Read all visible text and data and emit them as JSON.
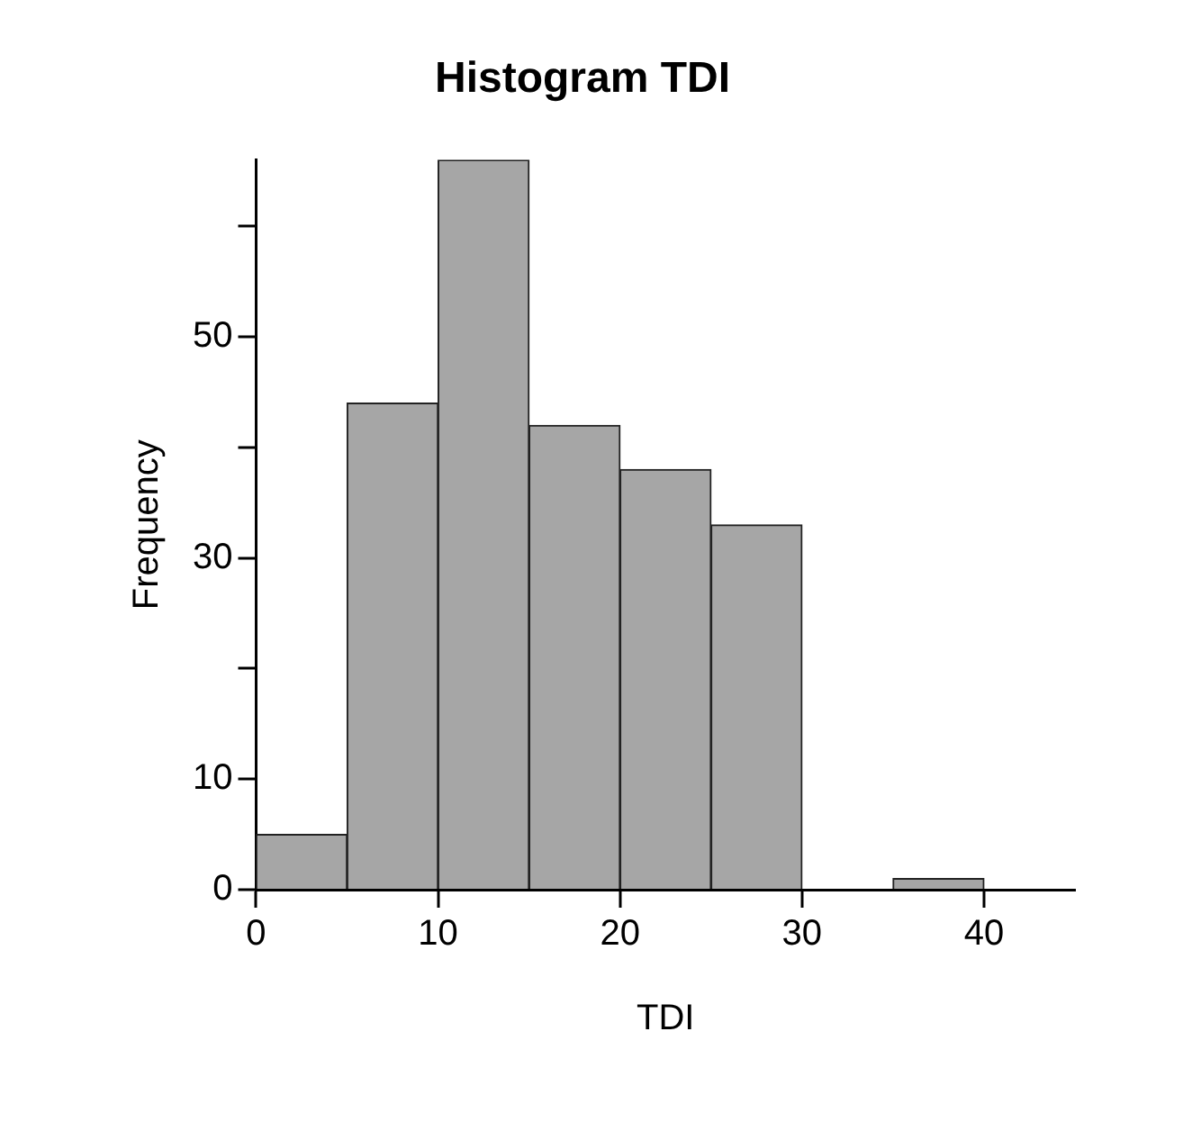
{
  "chart_data": {
    "type": "histogram",
    "title": "Histogram TDI",
    "xlabel": "TDI",
    "ylabel": "Frequency",
    "bins": [
      0,
      5,
      10,
      15,
      20,
      25,
      30,
      35,
      40,
      45
    ],
    "values": [
      5,
      44,
      66,
      42,
      38,
      33,
      0,
      1,
      0
    ],
    "color": "#a6a6a6",
    "xlim": [
      0,
      45
    ],
    "xticks": [
      0,
      10,
      20,
      30,
      40
    ],
    "ylim": [
      0,
      66
    ],
    "yticks": [
      0,
      10,
      {
        "value": 20,
        "label": null
      },
      30,
      {
        "value": 40,
        "label": null
      },
      50,
      {
        "value": 60,
        "label": null
      }
    ]
  }
}
